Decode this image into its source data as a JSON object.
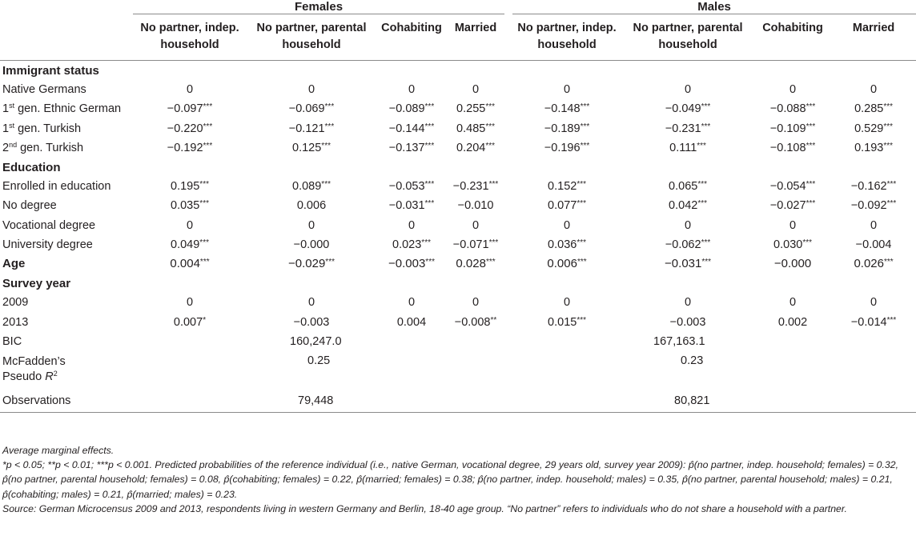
{
  "groups": {
    "females": "Females",
    "males": "Males"
  },
  "columns": {
    "f1a": "No partner, indep.",
    "f1b": "household",
    "f2a": "No partner, parental",
    "f2b": "household",
    "f3": "Cohabiting",
    "f4": "Married",
    "m1a": "No partner, indep.",
    "m1b": "household",
    "m2a": "No partner, parental",
    "m2b": "household",
    "m3": "Cohabiting",
    "m4": "Married"
  },
  "sections": {
    "immigrant": "Immigrant status",
    "education": "Education",
    "age": "Age",
    "survey": "Survey year"
  },
  "rows": {
    "native": {
      "label": "Native Germans",
      "v": [
        "0",
        "0",
        "0",
        "0",
        "0",
        "0",
        "0",
        "0"
      ]
    },
    "eth": {
      "sup": "st",
      "label": " gen. Ethnic German",
      "num": "1",
      "v": [
        "−0.097***",
        "−0.069***",
        "−0.089***",
        "0.255***",
        "−0.148***",
        "−0.049***",
        "−0.088***",
        "0.285***"
      ]
    },
    "turk1": {
      "num": "1",
      "sup": "st",
      "label": " gen. Turkish",
      "v": [
        "−0.220***",
        "−0.121***",
        "−0.144***",
        "0.485***",
        "−0.189***",
        "−0.231***",
        "−0.109***",
        "0.529***"
      ]
    },
    "turk2": {
      "num": "2",
      "sup": "nd",
      "label": " gen. Turkish",
      "v": [
        "−0.192***",
        "0.125***",
        "−0.137***",
        "0.204***",
        "−0.196***",
        "0.111***",
        "−0.108***",
        "0.193***"
      ]
    },
    "enrolled": {
      "label": "Enrolled in education",
      "v": [
        "0.195***",
        "0.089***",
        "−0.053***",
        "−0.231***",
        "0.152***",
        "0.065***",
        "−0.054***",
        "−0.162***"
      ]
    },
    "nodeg": {
      "label": "No degree",
      "v": [
        "0.035***",
        "0.006",
        "−0.031***",
        "−0.010",
        "0.077***",
        "0.042***",
        "−0.027***",
        "−0.092***"
      ]
    },
    "voc": {
      "label": "Vocational degree",
      "v": [
        "0",
        "0",
        "0",
        "0",
        "0",
        "0",
        "0",
        "0"
      ]
    },
    "uni": {
      "label": "University degree",
      "v": [
        "0.049***",
        "−0.000",
        "0.023***",
        "−0.071***",
        "0.036***",
        "−0.062***",
        "0.030***",
        "−0.004"
      ]
    },
    "age": {
      "v": [
        "0.004***",
        "−0.029***",
        "−0.003***",
        "0.028***",
        "0.006***",
        "−0.031***",
        "−0.000",
        "0.026***"
      ]
    },
    "y2009": {
      "label": "2009",
      "v": [
        "0",
        "0",
        "0",
        "0",
        "0",
        "0",
        "0",
        "0"
      ]
    },
    "y2013": {
      "label": "2013",
      "v": [
        "0.007*",
        "−0.003",
        "0.004",
        "−0.008**",
        "0.015***",
        "−0.003",
        "0.002",
        "−0.014***"
      ]
    }
  },
  "stats": {
    "bic": {
      "label": "BIC",
      "f": "160,247.0",
      "m": "167,163.1"
    },
    "pseudo": {
      "label1": "McFadden’s",
      "label2": "Pseudo ",
      "r": "R",
      "sup": "2",
      "f": "0.25",
      "m": "0.23"
    },
    "obs": {
      "label": "Observations",
      "f": "79,448",
      "m": "80,821"
    }
  },
  "notes": {
    "n1": "Average marginal effects.",
    "n2": "*p < 0.05; **p < 0.01; ***p < 0.001. Predicted probabilities of the reference individual (i.e., native German, vocational degree, 29 years old, survey year 2009): p̂(no partner, indep. household; females) = 0.32, p̂(no partner, parental household; females) = 0.08, p̂(cohabiting; females) = 0.22, p̂(married; females) = 0.38; p̂(no partner, indep. household; males) = 0.35, p̂(no partner, parental household; males) = 0.21, p̂(cohabiting; males) = 0.21, p̂(married; males) = 0.23.",
    "n3": "Source: German Microcensus 2009 and 2013, respondents living in western Germany and Berlin, 18-40 age group. “No partner” refers to individuals who do not share a household with a partner."
  }
}
